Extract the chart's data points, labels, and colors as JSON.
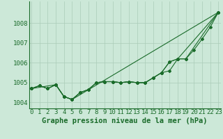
{
  "title": "Graphe pression niveau de la mer (hPa)",
  "xlabel_hours": [
    0,
    1,
    2,
    3,
    4,
    5,
    6,
    7,
    8,
    9,
    10,
    11,
    12,
    13,
    14,
    15,
    16,
    17,
    18,
    19,
    20,
    21,
    22,
    23
  ],
  "line1": [
    1004.7,
    1004.85,
    1004.7,
    1004.9,
    1004.3,
    1004.15,
    1004.5,
    1004.65,
    1005.0,
    1005.05,
    1005.05,
    1005.0,
    1005.05,
    1005.0,
    1005.0,
    1005.25,
    1005.5,
    1005.6,
    1006.2,
    1006.2,
    1006.65,
    1007.2,
    1007.8,
    1008.55
  ],
  "line2": [
    1004.7,
    1004.85,
    1004.7,
    1004.9,
    1004.3,
    1004.15,
    1004.5,
    1004.65,
    1005.0,
    1005.05,
    1005.05,
    1005.0,
    1005.05,
    1005.0,
    1005.0,
    1005.25,
    1005.5,
    1006.05,
    1006.2,
    1006.2,
    null,
    null,
    null,
    1008.55
  ],
  "line3": [
    1004.7,
    1004.85,
    1004.7,
    1004.9,
    1004.3,
    1004.15,
    1004.5,
    1004.65,
    1005.0,
    1005.05,
    1005.05,
    1005.0,
    1005.05,
    1005.0,
    1005.0,
    1005.25,
    1005.5,
    1006.05,
    1006.2,
    null,
    null,
    null,
    null,
    1008.55
  ],
  "line4": [
    1004.7,
    null,
    null,
    1004.9,
    1004.3,
    1004.15,
    null,
    null,
    null,
    null,
    null,
    null,
    null,
    null,
    null,
    null,
    null,
    null,
    null,
    null,
    null,
    null,
    null,
    1008.55
  ],
  "bg_color": "#cce8d8",
  "grid_color": "#aaccb8",
  "line_color": "#1a6b2a",
  "ylim_min": 1003.7,
  "ylim_max": 1009.1,
  "yticks": [
    1004,
    1005,
    1006,
    1007,
    1008
  ],
  "title_fontsize": 7.5,
  "tick_fontsize": 6.5
}
